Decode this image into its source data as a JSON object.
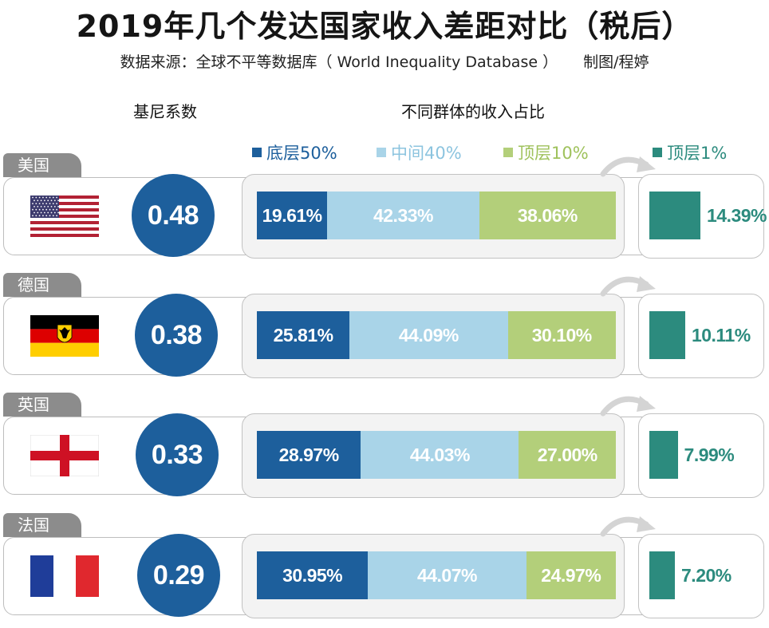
{
  "title": "2019年几个发达国家收入差距对比（税后）",
  "subtitle": {
    "source": "数据来源：全球不平等数据库（ World Inequality Database ）",
    "credit": "制图/程婷"
  },
  "columns": {
    "gini_header": "基尼系数",
    "shares_header": "不同群体的收入占比"
  },
  "colors": {
    "bottom50": "#1d5f9c",
    "middle40": "#a9d4e8",
    "top10": "#b3cf7a",
    "top1": "#2c8b7e",
    "gini_circle": "#1d5f9c",
    "country_tag": "#8c8c8c"
  },
  "chart_data": {
    "type": "bar",
    "stacked": true,
    "orientation": "horizontal",
    "title": "2019年几个发达国家收入差距对比（税后）",
    "categories": [
      "美国",
      "德国",
      "英国",
      "法国"
    ],
    "gini": {
      "label": "基尼系数",
      "values": [
        "0.48",
        "0.38",
        "0.33",
        "0.29"
      ]
    },
    "series": [
      {
        "key": "bottom50",
        "name": "底层50%",
        "values": [
          19.61,
          25.81,
          28.97,
          30.95
        ],
        "labels": [
          "19.61%",
          "25.81%",
          "28.97%",
          "30.95%"
        ]
      },
      {
        "key": "middle40",
        "name": "中间40%",
        "values": [
          42.33,
          44.09,
          44.03,
          44.07
        ],
        "labels": [
          "42.33%",
          "44.09%",
          "44.03%",
          "44.07%"
        ]
      },
      {
        "key": "top10",
        "name": "顶层10%",
        "values": [
          38.06,
          30.1,
          27.0,
          24.97
        ],
        "labels": [
          "38.06%",
          "30.10%",
          "27.00%",
          "24.97%"
        ]
      }
    ],
    "top1": {
      "name": "顶层1%",
      "values": [
        14.39,
        10.11,
        7.99,
        7.2
      ],
      "labels": [
        "14.39%",
        "10.11%",
        "7.99%",
        "7.20%"
      ]
    },
    "flags": [
      "us-flag",
      "germany-flag",
      "england-flag",
      "france-flag"
    ]
  }
}
